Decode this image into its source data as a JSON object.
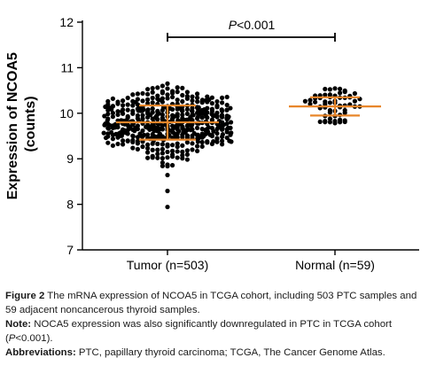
{
  "chart_data": {
    "type": "scatter",
    "ylabel_line1": "Expression of NCOA5",
    "ylabel_line2": "(counts)",
    "ylim": [
      7,
      12
    ],
    "yticks": [
      7,
      8,
      9,
      10,
      11,
      12
    ],
    "categories": [
      "Tumor (n=503)",
      "Normal (n=59)"
    ],
    "groups": [
      {
        "n": 503,
        "mean": 9.8,
        "sd_low": 9.42,
        "sd_high": 10.17,
        "min": 7.95,
        "max": 10.65
      },
      {
        "n": 59,
        "mean": 10.15,
        "sd_low": 9.95,
        "sd_high": 10.35,
        "min": 9.78,
        "max": 10.55
      }
    ],
    "significance": {
      "p_italic": "P",
      "p_rest": "<0.001"
    },
    "grid": false,
    "colors": {
      "points": "#000000",
      "errorbar": "#e8862a",
      "axis": "#000000"
    }
  },
  "caption": {
    "figure_label": "Figure 2",
    "figure_text": " The mRNA expression of NCOA5 in TCGA cohort, including 503 PTC samples and 59 adjacent noncancerous thyroid samples.",
    "note_label": "Note:",
    "note_text_1": " NOCA5 expression was also significantly downregulated in PTC in TCGA cohort (",
    "note_p": "P",
    "note_text_2": "<0.001).",
    "abbr_label": "Abbreviations:",
    "abbr_text": " PTC, papillary thyroid carcinoma; TCGA, The Cancer Genome Atlas."
  }
}
